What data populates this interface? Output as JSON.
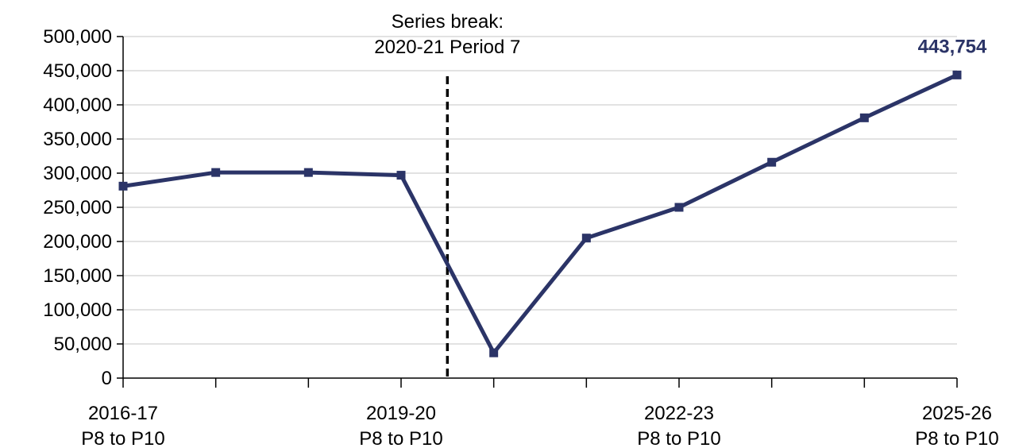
{
  "chart_data": {
    "type": "line",
    "categories": [
      "2016-17\nP8 to P10",
      null,
      null,
      "2019-20\nP8 to P10",
      null,
      null,
      "2022-23\nP8 to P10",
      null,
      null,
      "2025-26\nP8 to P10"
    ],
    "series": [
      {
        "name": "Series",
        "color": "#2b3467",
        "values": [
          281000,
          301000,
          301000,
          297000,
          37000,
          205000,
          250000,
          316000,
          381000,
          443754
        ],
        "value_labels": [
          null,
          null,
          null,
          null,
          null,
          null,
          null,
          null,
          null,
          "443,754"
        ]
      }
    ],
    "annotation": "Series break:\n2020-21 Period 7",
    "ylim": [
      0,
      500000
    ],
    "yticks": [
      0,
      {
        "value": 50000,
        "label": "50,000"
      },
      {
        "value": 100000,
        "label": "100,000"
      },
      {
        "value": 150000,
        "label": "150,000"
      },
      {
        "value": 200000,
        "label": "200,000"
      },
      {
        "value": 250000,
        "label": "250,000"
      },
      {
        "value": 300000,
        "label": "300,000"
      },
      {
        "value": 350000,
        "label": "350,000"
      },
      {
        "value": 400000,
        "label": "400,000"
      },
      {
        "value": 450000,
        "label": "450,000"
      },
      {
        "value": 500000,
        "label": "500,000"
      }
    ],
    "grid": true
  }
}
